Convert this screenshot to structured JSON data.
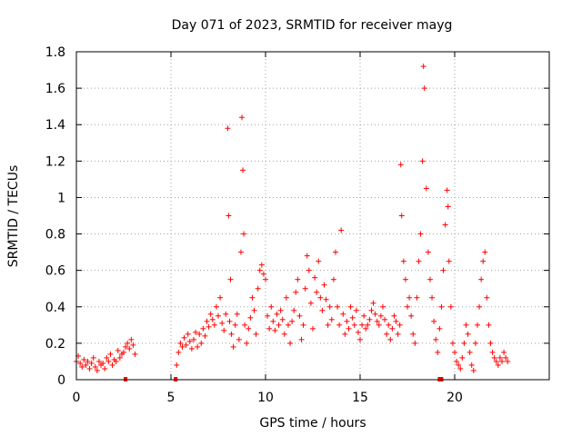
{
  "chart_data": {
    "type": "scatter",
    "title": "Day 071 of 2023, SRMTID for receiver mayg",
    "xlabel": "GPS time / hours",
    "ylabel": "SRMTID / TECUs",
    "xlim": [
      0,
      25
    ],
    "ylim": [
      0,
      1.8
    ],
    "xticks": [
      0,
      5,
      10,
      15,
      20
    ],
    "xtick_labels": [
      "0",
      "5",
      "10",
      "15",
      "20"
    ],
    "yticks": [
      0,
      0.2,
      0.4,
      0.6,
      0.8,
      1.0,
      1.2,
      1.4,
      1.6,
      1.8
    ],
    "ytick_labels": [
      "0",
      "0.2",
      "0.4",
      "0.6",
      "0.8",
      "1",
      "1.2",
      "1.4",
      "1.6",
      "1.8"
    ],
    "grid": true,
    "marker": "+",
    "color": "#ff0000",
    "series": [
      {
        "name": "SRMTID",
        "x": [
          0.0,
          0.1,
          0.2,
          0.3,
          0.4,
          0.5,
          0.6,
          0.7,
          0.8,
          0.9,
          1.0,
          1.1,
          1.2,
          1.3,
          1.4,
          1.5,
          1.6,
          1.7,
          1.8,
          1.9,
          2.0,
          2.1,
          2.2,
          2.3,
          2.4,
          2.5,
          2.6,
          2.7,
          2.8,
          2.9,
          3.0,
          3.1,
          5.3,
          5.4,
          5.5,
          5.6,
          5.7,
          5.8,
          5.9,
          6.0,
          6.1,
          6.2,
          6.3,
          6.4,
          6.5,
          6.6,
          6.7,
          6.8,
          6.9,
          7.0,
          7.1,
          7.2,
          7.3,
          7.4,
          7.5,
          7.6,
          7.7,
          7.8,
          7.9,
          8.0,
          8.05,
          8.1,
          8.15,
          8.2,
          8.3,
          8.4,
          8.5,
          8.6,
          8.7,
          8.75,
          8.8,
          8.85,
          8.9,
          9.0,
          9.1,
          9.2,
          9.3,
          9.4,
          9.5,
          9.6,
          9.7,
          9.8,
          9.9,
          10.0,
          10.1,
          10.2,
          10.3,
          10.4,
          10.5,
          10.6,
          10.7,
          10.8,
          10.9,
          11.0,
          11.1,
          11.2,
          11.3,
          11.4,
          11.5,
          11.6,
          11.7,
          11.8,
          11.9,
          12.0,
          12.1,
          12.2,
          12.3,
          12.4,
          12.5,
          12.6,
          12.7,
          12.8,
          12.9,
          13.0,
          13.1,
          13.2,
          13.3,
          13.4,
          13.5,
          13.6,
          13.7,
          13.8,
          13.9,
          14.0,
          14.1,
          14.2,
          14.3,
          14.4,
          14.5,
          14.6,
          14.7,
          14.8,
          14.9,
          15.0,
          15.1,
          15.2,
          15.3,
          15.4,
          15.5,
          15.6,
          15.7,
          15.8,
          15.9,
          16.0,
          16.1,
          16.2,
          16.3,
          16.4,
          16.5,
          16.6,
          16.7,
          16.8,
          16.9,
          17.0,
          17.1,
          17.15,
          17.2,
          17.3,
          17.4,
          17.5,
          17.6,
          17.7,
          17.8,
          17.9,
          18.0,
          18.1,
          18.2,
          18.3,
          18.35,
          18.4,
          18.5,
          18.6,
          18.7,
          18.8,
          18.9,
          19.0,
          19.1,
          19.2,
          19.3,
          19.4,
          19.5,
          19.6,
          19.65,
          19.7,
          19.8,
          19.9,
          20.0,
          20.1,
          20.2,
          20.3,
          20.4,
          20.5,
          20.6,
          20.7,
          20.8,
          20.9,
          21.0,
          21.1,
          21.2,
          21.3,
          21.4,
          21.5,
          21.6,
          21.7,
          21.8,
          21.9,
          22.0,
          22.1,
          22.2,
          22.3,
          22.4,
          22.5,
          22.6,
          22.7,
          22.8
        ],
        "y": [
          0.1,
          0.13,
          0.09,
          0.07,
          0.11,
          0.08,
          0.1,
          0.06,
          0.09,
          0.12,
          0.07,
          0.05,
          0.1,
          0.08,
          0.09,
          0.06,
          0.12,
          0.1,
          0.14,
          0.08,
          0.11,
          0.1,
          0.16,
          0.12,
          0.14,
          0.15,
          0.18,
          0.2,
          0.17,
          0.22,
          0.19,
          0.14,
          0.08,
          0.15,
          0.2,
          0.18,
          0.23,
          0.19,
          0.25,
          0.21,
          0.17,
          0.22,
          0.26,
          0.18,
          0.25,
          0.2,
          0.28,
          0.24,
          0.32,
          0.29,
          0.36,
          0.33,
          0.3,
          0.4,
          0.35,
          0.45,
          0.31,
          0.27,
          0.36,
          1.38,
          0.9,
          0.32,
          0.55,
          0.25,
          0.18,
          0.3,
          0.36,
          0.22,
          0.7,
          1.44,
          1.15,
          0.8,
          0.3,
          0.2,
          0.28,
          0.34,
          0.45,
          0.38,
          0.25,
          0.5,
          0.6,
          0.63,
          0.58,
          0.55,
          0.35,
          0.28,
          0.4,
          0.32,
          0.27,
          0.36,
          0.3,
          0.38,
          0.33,
          0.25,
          0.45,
          0.3,
          0.2,
          0.32,
          0.38,
          0.48,
          0.55,
          0.35,
          0.22,
          0.3,
          0.5,
          0.68,
          0.6,
          0.42,
          0.28,
          0.56,
          0.48,
          0.65,
          0.45,
          0.38,
          0.52,
          0.44,
          0.3,
          0.4,
          0.33,
          0.55,
          0.7,
          0.4,
          0.3,
          0.82,
          0.36,
          0.25,
          0.32,
          0.28,
          0.4,
          0.34,
          0.3,
          0.38,
          0.26,
          0.22,
          0.3,
          0.35,
          0.28,
          0.3,
          0.33,
          0.38,
          0.42,
          0.36,
          0.32,
          0.3,
          0.35,
          0.4,
          0.33,
          0.25,
          0.3,
          0.22,
          0.28,
          0.35,
          0.32,
          0.25,
          0.3,
          1.18,
          0.9,
          0.65,
          0.55,
          0.4,
          0.45,
          0.35,
          0.25,
          0.2,
          0.45,
          0.65,
          0.8,
          1.2,
          1.72,
          1.6,
          1.05,
          0.7,
          0.55,
          0.45,
          0.32,
          0.22,
          0.15,
          0.28,
          0.4,
          0.6,
          0.85,
          1.04,
          0.95,
          0.65,
          0.4,
          0.2,
          0.15,
          0.1,
          0.08,
          0.06,
          0.12,
          0.2,
          0.3,
          0.25,
          0.15,
          0.08,
          0.05,
          0.2,
          0.3,
          0.4,
          0.55,
          0.65,
          0.7,
          0.45,
          0.3,
          0.2,
          0.15,
          0.12,
          0.1,
          0.08,
          0.12,
          0.1,
          0.15,
          0.12,
          0.1
        ]
      }
    ],
    "gap_markers": {
      "x": [
        2.6,
        5.25,
        19.2,
        19.3
      ],
      "y": [
        0,
        0,
        0,
        0
      ]
    }
  }
}
